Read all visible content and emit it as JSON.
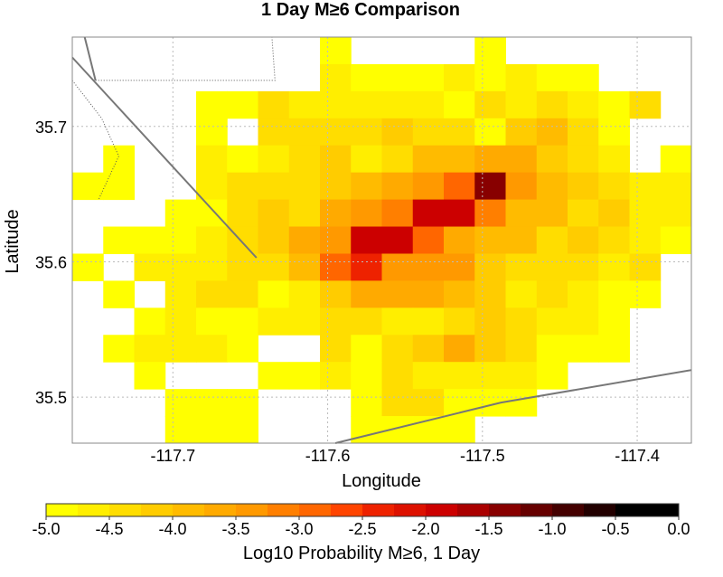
{
  "chart_data": {
    "type": "heatmap",
    "title": "1 Day M≥6 Comparison",
    "xlabel": "Longitude",
    "ylabel": "Latitude",
    "xlim": [
      -117.765,
      -117.365
    ],
    "ylim": [
      35.466,
      35.766
    ],
    "x_ticks": [
      {
        "value": -117.7,
        "label": "-117.7"
      },
      {
        "value": -117.6,
        "label": "-117.6"
      },
      {
        "value": -117.5,
        "label": "-117.5"
      },
      {
        "value": -117.4,
        "label": "-117.4"
      }
    ],
    "y_ticks": [
      {
        "value": 35.5,
        "label": "35.5"
      },
      {
        "value": 35.6,
        "label": "35.6"
      },
      {
        "value": 35.7,
        "label": "35.7"
      }
    ],
    "grid": true,
    "cell_size_deg": 0.02,
    "cell_lon_edges_start": -117.765,
    "cell_lat_edges_start": 35.466,
    "cells_note": "row 0 is northernmost; null = no value",
    "cells": [
      [
        null,
        null,
        null,
        null,
        null,
        null,
        null,
        null,
        null,
        null,
        null,
        null,
        null,
        null,
        null,
        null,
        null,
        null,
        null,
        null
      ],
      [
        null,
        null,
        null,
        null,
        null,
        null,
        null,
        null,
        null,
        null,
        null,
        null,
        null,
        null,
        null,
        null,
        null,
        null,
        null,
        null
      ],
      [
        null,
        null,
        null,
        null,
        null,
        null,
        null,
        null,
        null,
        null,
        null,
        null,
        null,
        null,
        null,
        null,
        null,
        null,
        null,
        null
      ],
      [
        null,
        null,
        null,
        null,
        null,
        null,
        null,
        null,
        null,
        null,
        null,
        null,
        null,
        null,
        null,
        null,
        null,
        null,
        null,
        null
      ],
      [
        null,
        null,
        null,
        null,
        null,
        null,
        null,
        null,
        null,
        null,
        null,
        null,
        null,
        null,
        null,
        null,
        null,
        null,
        null,
        null
      ],
      [
        null,
        null,
        null,
        null,
        null,
        null,
        null,
        null,
        null,
        null,
        null,
        null,
        null,
        null,
        null,
        null,
        null,
        null,
        null,
        null
      ],
      [
        null,
        null,
        null,
        null,
        null,
        null,
        null,
        null,
        null,
        null,
        null,
        null,
        null,
        null,
        null,
        null,
        null,
        null,
        null,
        null
      ],
      [
        null,
        null,
        null,
        null,
        null,
        null,
        null,
        null,
        null,
        null,
        null,
        null,
        null,
        null,
        null,
        null,
        null,
        null,
        null,
        null
      ],
      [
        null,
        null,
        null,
        null,
        null,
        null,
        null,
        null,
        null,
        null,
        null,
        null,
        null,
        null,
        null,
        null,
        null,
        null,
        null,
        null
      ],
      [
        null,
        null,
        null,
        null,
        null,
        null,
        null,
        null,
        null,
        null,
        null,
        null,
        null,
        null,
        null,
        null,
        null,
        null,
        null,
        null
      ],
      [
        null,
        null,
        null,
        null,
        null,
        null,
        null,
        null,
        null,
        null,
        null,
        null,
        null,
        null,
        null,
        null,
        null,
        null,
        null,
        null
      ],
      [
        null,
        null,
        null,
        null,
        null,
        null,
        null,
        null,
        null,
        null,
        null,
        null,
        null,
        null,
        null,
        null,
        null,
        null,
        null,
        null
      ],
      [
        null,
        null,
        null,
        null,
        null,
        null,
        null,
        null,
        null,
        null,
        null,
        null,
        null,
        null,
        null,
        null,
        null,
        null,
        null,
        null
      ],
      [
        null,
        null,
        null,
        null,
        null,
        null,
        null,
        null,
        null,
        null,
        null,
        null,
        null,
        null,
        null,
        null,
        null,
        null,
        null,
        null
      ],
      [
        null,
        null,
        null,
        null,
        null,
        null,
        null,
        null,
        null,
        null,
        null,
        null,
        null,
        null,
        null,
        null,
        null,
        null,
        null,
        null
      ]
    ],
    "colorbar": {
      "label": "Log10 Probability M≥6, 1 Day",
      "range": [
        -5.0,
        0.0
      ],
      "ticks": [
        {
          "value": -5.0,
          "label": "-5.0"
        },
        {
          "value": -4.5,
          "label": "-4.5"
        },
        {
          "value": -4.0,
          "label": "-4.0"
        },
        {
          "value": -3.5,
          "label": "-3.5"
        },
        {
          "value": -3.0,
          "label": "-3.0"
        },
        {
          "value": -2.5,
          "label": "-2.5"
        },
        {
          "value": -2.0,
          "label": "-2.0"
        },
        {
          "value": -1.5,
          "label": "-1.5"
        },
        {
          "value": -1.0,
          "label": "-1.0"
        },
        {
          "value": -0.5,
          "label": "-0.5"
        },
        {
          "value": 0.0,
          "label": "0.0"
        }
      ],
      "colors": [
        "#ffff00",
        "#ffee00",
        "#ffdd00",
        "#ffcc00",
        "#ffbb00",
        "#ffaa00",
        "#ff9900",
        "#ff7f00",
        "#ff6600",
        "#ff4400",
        "#ee2200",
        "#dd1100",
        "#cc0000",
        "#aa0000",
        "#880000",
        "#660000",
        "#440000",
        "#220000",
        "#000000",
        "#000000"
      ]
    }
  }
}
